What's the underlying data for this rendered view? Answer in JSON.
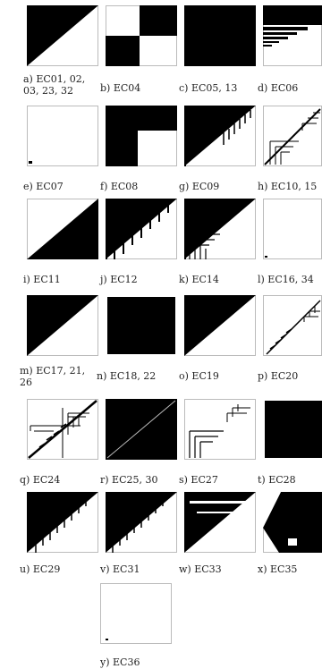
{
  "figure": {
    "panels": [
      {
        "id": "a",
        "label": "a) EC01, 02, 03, 23, 32"
      },
      {
        "id": "b",
        "label": "b) EC04"
      },
      {
        "id": "c",
        "label": "c) EC05, 13"
      },
      {
        "id": "d",
        "label": "d) EC06"
      },
      {
        "id": "e",
        "label": "e) EC07"
      },
      {
        "id": "f",
        "label": "f) EC08"
      },
      {
        "id": "g",
        "label": "g) EC09"
      },
      {
        "id": "h",
        "label": "h) EC10, 15"
      },
      {
        "id": "i",
        "label": "i) EC11"
      },
      {
        "id": "j",
        "label": "j) EC12"
      },
      {
        "id": "k",
        "label": "k) EC14"
      },
      {
        "id": "l",
        "label": "l) EC16, 34"
      },
      {
        "id": "m",
        "label": "m) EC17, 21, 26"
      },
      {
        "id": "n",
        "label": "n) EC18, 22"
      },
      {
        "id": "o",
        "label": "o) EC19"
      },
      {
        "id": "p",
        "label": "p) EC20"
      },
      {
        "id": "q",
        "label": "q) EC24"
      },
      {
        "id": "r",
        "label": "r) EC25, 30"
      },
      {
        "id": "s",
        "label": "s) EC27"
      },
      {
        "id": "t",
        "label": "t) EC28"
      },
      {
        "id": "u",
        "label": "u) EC29"
      },
      {
        "id": "v",
        "label": "v) EC31"
      },
      {
        "id": "w",
        "label": "w) EC33"
      },
      {
        "id": "x",
        "label": "x) EC35"
      },
      {
        "id": "y",
        "label": "y) EC36"
      }
    ]
  }
}
